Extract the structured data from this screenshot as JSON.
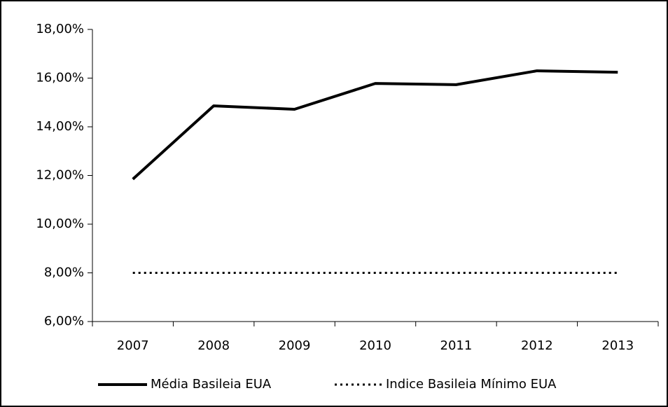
{
  "chart_data": {
    "type": "line",
    "categories": [
      "2007",
      "2008",
      "2009",
      "2010",
      "2011",
      "2012",
      "2013"
    ],
    "series": [
      {
        "name": "Média Basileia EUA",
        "color": "#000000",
        "style": "solid",
        "values": [
          11.85,
          14.86,
          14.72,
          15.78,
          15.73,
          16.3,
          16.24
        ]
      },
      {
        "name": "Indice Basileia Mínimo EUA",
        "color": "#000000",
        "style": "dotted",
        "values": [
          8,
          8,
          8,
          8,
          8,
          8,
          8
        ]
      }
    ],
    "ylim": [
      6,
      18
    ],
    "yticks": [
      {
        "value": 6,
        "label": "6,00%"
      },
      {
        "value": 8,
        "label": "8,00%"
      },
      {
        "value": 10,
        "label": "10,00%"
      },
      {
        "value": 12,
        "label": "12,00%"
      },
      {
        "value": 14,
        "label": "14,00%"
      },
      {
        "value": 16,
        "label": "16,00%"
      },
      {
        "value": 18,
        "label": "18,00%"
      }
    ],
    "grid": false,
    "legend": "bottom"
  }
}
